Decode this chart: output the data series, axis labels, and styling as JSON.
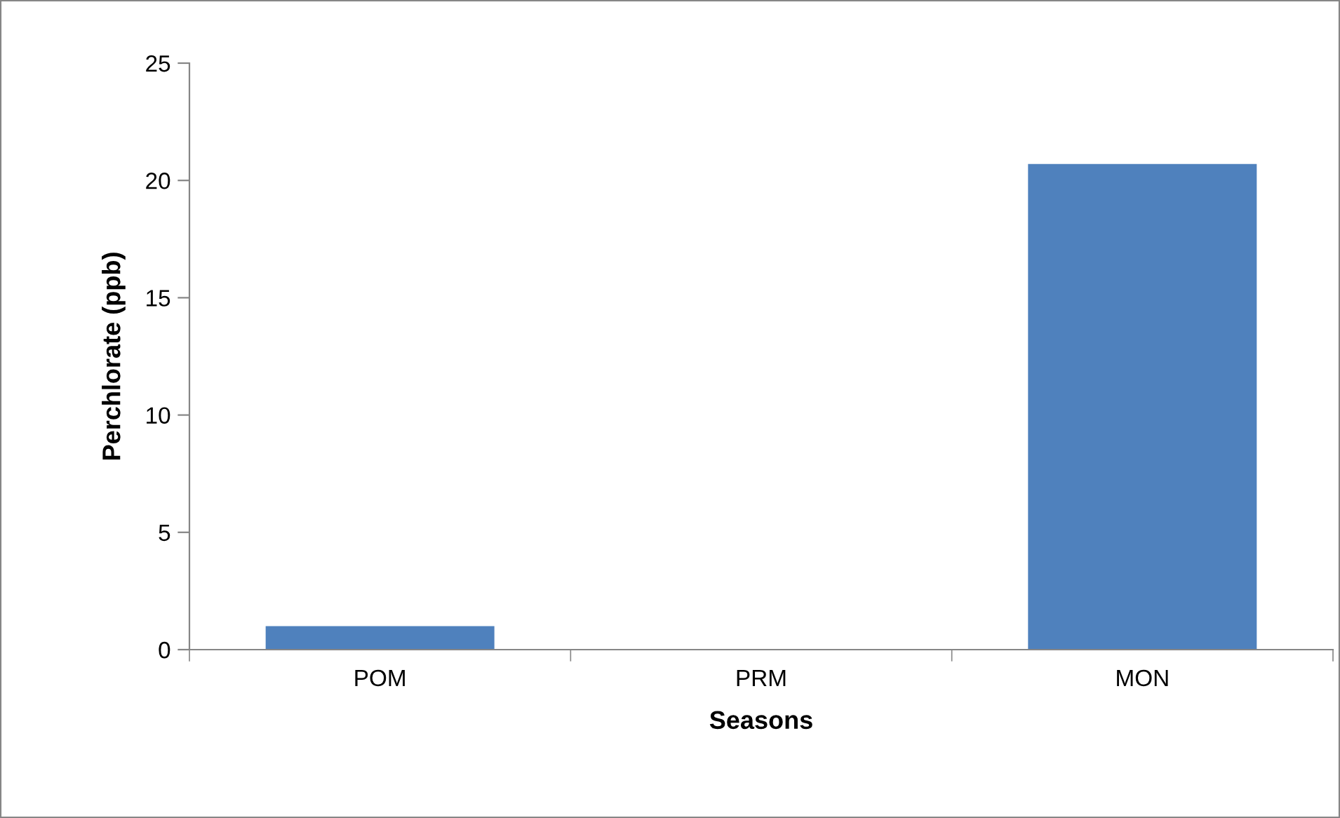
{
  "chart_data": {
    "type": "bar",
    "xlabel": "Seasons",
    "ylabel": "Perchlorate (ppb)",
    "categories": [
      "POM",
      "PRM",
      "MON"
    ],
    "values": [
      1.0,
      0,
      20.7
    ],
    "color": "#4f81bd",
    "ylim": [
      0,
      25
    ],
    "yticks": [
      0,
      5,
      10,
      15,
      20,
      25
    ],
    "grid": false,
    "legend": false
  }
}
